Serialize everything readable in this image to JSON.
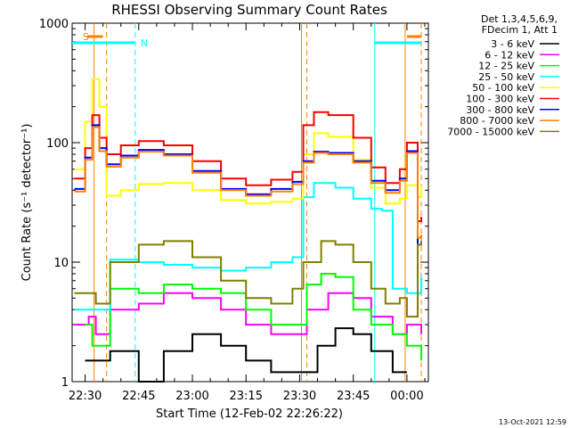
{
  "chart_data": {
    "type": "line",
    "title": "RHESSI Observing Summary Count Rates",
    "xlabel": "Start Time (12-Feb-02 22:26:22)",
    "ylabel": "Count Rate (s⁻¹ detector⁻¹)",
    "y_scale": "log",
    "ylim": [
      1,
      1000
    ],
    "xlim": [
      "22:26:22",
      "00:06:00"
    ],
    "x_ticks": [
      "22:30",
      "22:45",
      "23:00",
      "23:15",
      "23:30",
      "23:45",
      "00:00"
    ],
    "y_ticks": [
      "1",
      "10",
      "100",
      "1000"
    ],
    "legend_header": [
      "Det 1,3,4,5,6,9,",
      "FDecim 1, Att 1"
    ],
    "legend_position": "right",
    "timestamp": "13-Oct-2021 12:59",
    "markers": {
      "saa_label": "S",
      "night_label": "N",
      "saa_color": "#ff8000",
      "night_color": "#00ffff",
      "saa_lines": [
        {
          "t": "22:32:30",
          "dash": false
        },
        {
          "t": "22:36:00",
          "dash": true
        },
        {
          "t": "23:30:30",
          "dash": false
        },
        {
          "t": "23:32:00",
          "dash": true
        },
        {
          "t": "23:59:30",
          "dash": false
        },
        {
          "t": "00:04:00",
          "dash": true
        }
      ],
      "night_lines": [
        {
          "t": "22:44:00",
          "dash": true
        },
        {
          "t": "23:51:00",
          "dash": false
        }
      ],
      "saa_bars": [
        [
          "22:30:30",
          "22:35:00"
        ],
        [
          "00:00:00",
          "00:04:00"
        ]
      ],
      "night_bars": [
        [
          "22:26:22",
          "22:44:00"
        ],
        [
          "23:51:00",
          "00:04:00"
        ]
      ]
    },
    "series": [
      {
        "name": "3 - 6 keV",
        "color": "#000000",
        "points": [
          [
            "22:30",
            1.5
          ],
          [
            "22:37",
            1.8
          ],
          [
            "22:45",
            1.0
          ],
          [
            "22:52",
            1.8
          ],
          [
            "23:00",
            2.5
          ],
          [
            "23:08",
            2.0
          ],
          [
            "23:15",
            1.5
          ],
          [
            "23:22",
            1.2
          ],
          [
            "23:30",
            1.2
          ],
          [
            "23:35",
            2.0
          ],
          [
            "23:40",
            2.8
          ],
          [
            "23:45",
            2.5
          ],
          [
            "23:50",
            1.8
          ],
          [
            "23:56",
            1.2
          ],
          [
            "00:00",
            1.2
          ]
        ]
      },
      {
        "name": "6 - 12 keV",
        "color": "#ff00ff",
        "points": [
          [
            "22:27",
            3.0
          ],
          [
            "22:31",
            3.5
          ],
          [
            "22:33",
            2.5
          ],
          [
            "22:37",
            4.0
          ],
          [
            "22:45",
            4.5
          ],
          [
            "22:52",
            5.5
          ],
          [
            "23:00",
            5.0
          ],
          [
            "23:08",
            4.0
          ],
          [
            "23:15",
            3.0
          ],
          [
            "23:22",
            2.5
          ],
          [
            "23:29",
            2.5
          ],
          [
            "23:32",
            4.0
          ],
          [
            "23:38",
            5.5
          ],
          [
            "23:45",
            5.0
          ],
          [
            "23:50",
            3.5
          ],
          [
            "23:56",
            2.5
          ],
          [
            "00:00",
            3.0
          ],
          [
            "00:04",
            2.5
          ]
        ]
      },
      {
        "name": "12 - 25 keV",
        "color": "#00ff00",
        "points": [
          [
            "22:30",
            3.0
          ],
          [
            "22:32",
            2.0
          ],
          [
            "22:37",
            6.0
          ],
          [
            "22:45",
            5.5
          ],
          [
            "22:52",
            6.5
          ],
          [
            "23:00",
            6.0
          ],
          [
            "23:08",
            5.5
          ],
          [
            "23:15",
            4.0
          ],
          [
            "23:22",
            3.0
          ],
          [
            "23:29",
            3.0
          ],
          [
            "23:32",
            6.5
          ],
          [
            "23:36",
            8.0
          ],
          [
            "23:40",
            7.5
          ],
          [
            "23:45",
            4.0
          ],
          [
            "23:50",
            3.0
          ],
          [
            "23:56",
            2.5
          ],
          [
            "00:00",
            2.0
          ],
          [
            "00:04",
            1.5
          ]
        ]
      },
      {
        "name": "25 - 50 keV",
        "color": "#00ffff",
        "points": [
          [
            "22:27",
            4.0
          ],
          [
            "22:33",
            4.0
          ],
          [
            "22:37",
            10.5
          ],
          [
            "22:45",
            10.0
          ],
          [
            "22:52",
            9.5
          ],
          [
            "23:00",
            9.0
          ],
          [
            "23:08",
            8.5
          ],
          [
            "23:15",
            9.0
          ],
          [
            "23:22",
            10.0
          ],
          [
            "23:28",
            11.0
          ],
          [
            "23:31",
            35.0
          ],
          [
            "23:34",
            46.0
          ],
          [
            "23:40",
            42.0
          ],
          [
            "23:45",
            34.0
          ],
          [
            "23:50",
            28.0
          ],
          [
            "23:53",
            27.0
          ],
          [
            "23:56",
            6.0
          ],
          [
            "00:00",
            5.5
          ],
          [
            "00:04",
            7.5
          ]
        ]
      },
      {
        "name": "50 - 100 keV",
        "color": "#ffff00",
        "points": [
          [
            "22:27",
            60.0
          ],
          [
            "22:30",
            150.0
          ],
          [
            "22:32",
            340.0
          ],
          [
            "22:34",
            200.0
          ],
          [
            "22:36",
            36.0
          ],
          [
            "22:40",
            40.0
          ],
          [
            "22:45",
            45.0
          ],
          [
            "22:52",
            46.0
          ],
          [
            "23:00",
            40.0
          ],
          [
            "23:08",
            33.0
          ],
          [
            "23:15",
            31.0
          ],
          [
            "23:22",
            32.0
          ],
          [
            "23:28",
            34.0
          ],
          [
            "23:31",
            80.0
          ],
          [
            "23:34",
            120.0
          ],
          [
            "23:38",
            112.0
          ],
          [
            "23:45",
            72.0
          ],
          [
            "23:50",
            42.0
          ],
          [
            "23:54",
            31.0
          ],
          [
            "23:58",
            34.0
          ],
          [
            "00:00",
            44.0
          ],
          [
            "00:03",
            35.0
          ],
          [
            "00:04",
            44.0
          ]
        ]
      },
      {
        "name": "100 - 300 keV",
        "color": "#ff0000",
        "points": [
          [
            "22:27",
            50.0
          ],
          [
            "22:30",
            90.0
          ],
          [
            "22:32",
            170.0
          ],
          [
            "22:34",
            110.0
          ],
          [
            "22:36",
            80.0
          ],
          [
            "22:40",
            95.0
          ],
          [
            "22:45",
            103.0
          ],
          [
            "22:52",
            95.0
          ],
          [
            "23:00",
            70.0
          ],
          [
            "23:08",
            50.0
          ],
          [
            "23:15",
            44.0
          ],
          [
            "23:22",
            49.0
          ],
          [
            "23:28",
            57.0
          ],
          [
            "23:31",
            140.0
          ],
          [
            "23:34",
            180.0
          ],
          [
            "23:38",
            170.0
          ],
          [
            "23:45",
            110.0
          ],
          [
            "23:50",
            62.0
          ],
          [
            "23:54",
            46.0
          ],
          [
            "23:58",
            60.0
          ],
          [
            "00:00",
            100.0
          ],
          [
            "00:03",
            22.0
          ],
          [
            "00:04",
            24.0
          ]
        ]
      },
      {
        "name": "300 - 800 keV",
        "color": "#0000ff",
        "points": [
          [
            "22:27",
            41.0
          ],
          [
            "22:30",
            75.0
          ],
          [
            "22:32",
            140.0
          ],
          [
            "22:34",
            90.0
          ],
          [
            "22:36",
            66.0
          ],
          [
            "22:40",
            78.0
          ],
          [
            "22:45",
            87.0
          ],
          [
            "22:52",
            80.0
          ],
          [
            "23:00",
            58.0
          ],
          [
            "23:08",
            41.0
          ],
          [
            "23:15",
            37.0
          ],
          [
            "23:22",
            41.0
          ],
          [
            "23:28",
            47.0
          ],
          [
            "23:31",
            70.0
          ],
          [
            "23:34",
            84.0
          ],
          [
            "23:38",
            82.0
          ],
          [
            "23:45",
            70.0
          ],
          [
            "23:50",
            48.0
          ],
          [
            "23:54",
            40.0
          ],
          [
            "23:58",
            50.0
          ],
          [
            "00:00",
            85.0
          ],
          [
            "00:03",
            14.0
          ],
          [
            "00:04",
            15.0
          ]
        ]
      },
      {
        "name": "800 - 7000 keV",
        "color": "#ff8000",
        "points": [
          [
            "22:27",
            39.0
          ],
          [
            "22:30",
            72.0
          ],
          [
            "22:32",
            135.0
          ],
          [
            "22:34",
            85.0
          ],
          [
            "22:36",
            63.0
          ],
          [
            "22:40",
            75.0
          ],
          [
            "22:45",
            84.0
          ],
          [
            "22:52",
            78.0
          ],
          [
            "23:00",
            56.0
          ],
          [
            "23:08",
            40.0
          ],
          [
            "23:15",
            36.0
          ],
          [
            "23:22",
            39.0
          ],
          [
            "23:28",
            45.0
          ],
          [
            "23:31",
            68.0
          ],
          [
            "23:34",
            82.0
          ],
          [
            "23:38",
            80.0
          ],
          [
            "23:45",
            68.0
          ],
          [
            "23:50",
            46.0
          ],
          [
            "23:54",
            38.0
          ],
          [
            "23:58",
            48.0
          ],
          [
            "00:00",
            82.0
          ],
          [
            "00:03",
            16.0
          ],
          [
            "00:04",
            17.0
          ]
        ]
      },
      {
        "name": "7000 - 15000 keV",
        "color": "#808000",
        "points": [
          [
            "22:27",
            5.5
          ],
          [
            "22:33",
            4.5
          ],
          [
            "22:37",
            10.0
          ],
          [
            "22:45",
            14.0
          ],
          [
            "22:52",
            15.0
          ],
          [
            "23:00",
            11.0
          ],
          [
            "23:08",
            7.0
          ],
          [
            "23:15",
            5.0
          ],
          [
            "23:22",
            4.5
          ],
          [
            "23:28",
            6.0
          ],
          [
            "23:31",
            10.0
          ],
          [
            "23:36",
            15.0
          ],
          [
            "23:40",
            14.0
          ],
          [
            "23:45",
            10.0
          ],
          [
            "23:50",
            6.0
          ],
          [
            "23:54",
            4.5
          ],
          [
            "23:58",
            5.0
          ],
          [
            "00:00",
            3.5
          ],
          [
            "00:03",
            14.0
          ],
          [
            "00:04",
            15.0
          ]
        ]
      }
    ]
  }
}
